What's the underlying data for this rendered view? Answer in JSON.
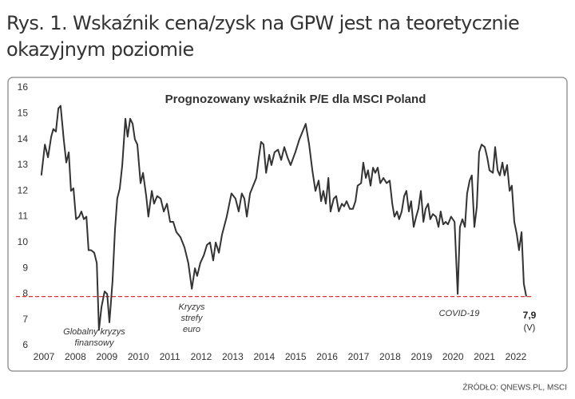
{
  "header": {
    "title": [
      "Rys. 1. Wskaźnik cena/zysk na GPW jest na teoretycznie",
      "okazyjnym poziomie"
    ]
  },
  "source": "ŹRÓDŁO: QNEWS.PL, MSCI",
  "chart_data": {
    "type": "line",
    "title": "Prognozowany wskaźnik P/E dla MSCI Poland",
    "x": [
      2006.92,
      2007.03,
      2007.13,
      2007.23,
      2007.3,
      2007.38,
      2007.46,
      2007.53,
      2007.63,
      2007.71,
      2007.79,
      2007.86,
      2007.94,
      2008.02,
      2008.12,
      2008.19,
      2008.27,
      2008.35,
      2008.42,
      2008.5,
      2008.6,
      2008.68,
      2008.75,
      2008.83,
      2008.93,
      2009.01,
      2009.08,
      2009.18,
      2009.26,
      2009.33,
      2009.41,
      2009.49,
      2009.59,
      2009.66,
      2009.74,
      2009.82,
      2009.89,
      2009.97,
      2010.07,
      2010.15,
      2010.25,
      2010.32,
      2010.43,
      2010.5,
      2010.6,
      2010.71,
      2010.81,
      2010.91,
      2011.01,
      2011.11,
      2011.21,
      2011.34,
      2011.47,
      2011.59,
      2011.7,
      2011.8,
      2011.87,
      2011.97,
      2012.08,
      2012.18,
      2012.28,
      2012.38,
      2012.46,
      2012.56,
      2012.66,
      2012.81,
      2012.96,
      2013.09,
      2013.19,
      2013.29,
      2013.37,
      2013.45,
      2013.55,
      2013.65,
      2013.75,
      2013.83,
      2013.9,
      2013.98,
      2014.06,
      2014.16,
      2014.23,
      2014.33,
      2014.44,
      2014.54,
      2014.64,
      2014.74,
      2014.84,
      2014.99,
      2015.12,
      2015.32,
      2015.43,
      2015.53,
      2015.63,
      2015.73,
      2015.81,
      2015.88,
      2015.96,
      2016.04,
      2016.11,
      2016.21,
      2016.29,
      2016.37,
      2016.47,
      2016.54,
      2016.62,
      2016.72,
      2016.82,
      2016.9,
      2016.97,
      2017.08,
      2017.15,
      2017.23,
      2017.3,
      2017.38,
      2017.46,
      2017.53,
      2017.61,
      2017.69,
      2017.79,
      2017.89,
      2017.99,
      2018.07,
      2018.14,
      2018.22,
      2018.29,
      2018.37,
      2018.45,
      2018.52,
      2018.6,
      2018.67,
      2018.75,
      2018.83,
      2018.9,
      2018.98,
      2019.06,
      2019.13,
      2019.21,
      2019.28,
      2019.36,
      2019.46,
      2019.54,
      2019.61,
      2019.69,
      2019.77,
      2019.84,
      2019.94,
      2020.05,
      2020.15,
      2020.22,
      2020.3,
      2020.38,
      2020.45,
      2020.53,
      2020.6,
      2020.68,
      2020.76,
      2020.83,
      2020.91,
      2021.01,
      2021.09,
      2021.16,
      2021.27,
      2021.34,
      2021.42,
      2021.49,
      2021.57,
      2021.64,
      2021.72,
      2021.8,
      2021.87,
      2021.95,
      2022.03,
      2022.1,
      2022.18,
      2022.25,
      2022.33
    ],
    "series": [
      {
        "color": "#333333",
        "values": [
          12.6,
          13.8,
          13.3,
          14.1,
          14.4,
          14.3,
          15.2,
          15.3,
          14.0,
          13.1,
          13.5,
          12.0,
          12.1,
          10.9,
          11.0,
          11.2,
          10.9,
          11.0,
          9.7,
          9.7,
          9.6,
          9.2,
          6.6,
          7.5,
          8.1,
          8.0,
          6.9,
          8.5,
          10.5,
          11.7,
          12.1,
          13.0,
          14.8,
          14.1,
          14.8,
          14.6,
          14.0,
          13.8,
          12.3,
          12.7,
          11.8,
          11.0,
          12.0,
          11.5,
          11.8,
          11.7,
          11.2,
          11.5,
          10.8,
          10.8,
          10.4,
          10.2,
          9.8,
          9.2,
          8.2,
          9.0,
          8.7,
          9.2,
          9.5,
          9.9,
          10.0,
          9.3,
          10.0,
          9.6,
          10.3,
          11.0,
          11.9,
          11.7,
          11.2,
          11.9,
          11.7,
          11.0,
          11.9,
          12.2,
          12.5,
          13.3,
          13.9,
          13.8,
          12.7,
          13.4,
          13.0,
          13.5,
          13.6,
          13.2,
          13.7,
          13.3,
          13.0,
          13.5,
          14.0,
          14.6,
          13.8,
          12.8,
          12.0,
          12.4,
          11.6,
          12.0,
          11.5,
          12.5,
          11.2,
          11.7,
          11.8,
          11.2,
          11.5,
          11.4,
          11.6,
          11.3,
          11.3,
          11.6,
          12.2,
          12.3,
          13.1,
          12.5,
          12.8,
          12.2,
          12.9,
          12.7,
          12.9,
          12.3,
          12.5,
          12.3,
          12.4,
          11.5,
          11.0,
          11.2,
          10.9,
          11.2,
          11.8,
          12.0,
          11.2,
          11.6,
          10.6,
          11.0,
          11.3,
          12.0,
          10.8,
          11.3,
          11.5,
          10.9,
          11.1,
          11.0,
          10.6,
          11.2,
          10.7,
          10.8,
          10.7,
          11.0,
          10.8,
          8.0,
          10.6,
          10.9,
          10.6,
          11.9,
          12.4,
          12.6,
          10.6,
          11.4,
          13.5,
          13.8,
          13.7,
          13.3,
          12.8,
          12.7,
          13.7,
          12.8,
          12.6,
          13.1,
          12.6,
          13.0,
          12.0,
          12.2,
          10.8,
          10.3,
          9.7,
          10.4,
          8.4,
          7.9
        ]
      }
    ],
    "xlim": [
      2006.8,
      2023.0
    ],
    "xticks": [
      2007,
      2008,
      2009,
      2010,
      2011,
      2012,
      2013,
      2014,
      2015,
      2016,
      2017,
      2018,
      2019,
      2020,
      2021,
      2022
    ],
    "ylim": [
      6,
      16
    ],
    "yticks": [
      6,
      7,
      8,
      9,
      10,
      11,
      12,
      13,
      14,
      15,
      16
    ],
    "reference_line": {
      "value": 7.9,
      "label": "7,9",
      "note": "(V)",
      "color": "#e03030"
    },
    "annotations": [
      [
        "Globalny kryzys",
        "finansowy"
      ],
      [
        "Kryzys",
        "strefy",
        "euro"
      ],
      [
        "COVID-19"
      ]
    ]
  }
}
